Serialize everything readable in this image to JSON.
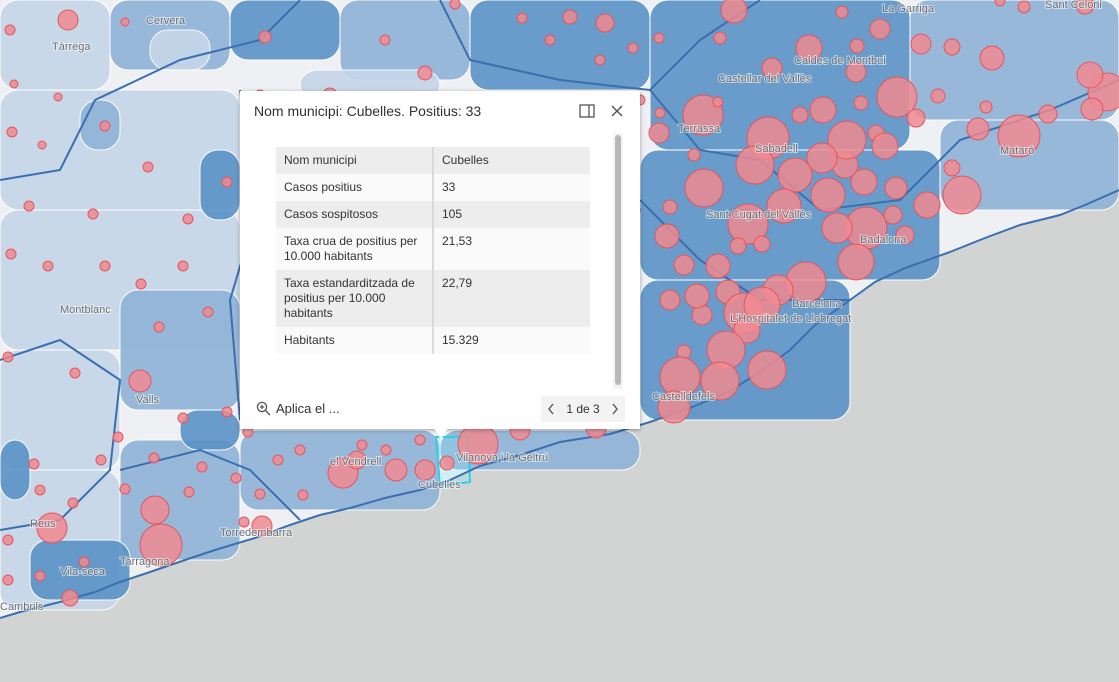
{
  "map": {
    "colors": {
      "sea": "#d2d4d4",
      "land": "#eef0f3",
      "boundary": "#3a6fb0",
      "fill_light": "#c6d6e9",
      "fill_mid": "#8fb3d8",
      "fill_dark": "#5b93c6",
      "bubble": "#f08a90",
      "bubble_stroke": "#e0565f",
      "selected_outline": "#2fd0e6"
    },
    "labels": {
      "tarrega": "Tàrrega",
      "cervera": "Cervera",
      "caldes": "Caldes de Montbui",
      "castellar": "Castellar del Vallès",
      "terrassa": "Terrassa",
      "sabadell": "Sabadell",
      "mataro": "Mataró",
      "santceloni": "Sant Celoni",
      "lagarriga": "La Garriga",
      "santcugat": "Sant Cugat del Vallès",
      "badalona": "Badalona",
      "montblanc": "Montblanc",
      "barcelona": "Barcelona",
      "hospitalet": "L'Hospitalet de Llobregat",
      "valls": "Valls",
      "castelldefels": "Castelldefels",
      "vendrell": "el Vendrell",
      "vilanova": "Vilanova i la Geltrú",
      "cubelles": "Cubelles",
      "reus": "Reus",
      "tarragona": "Tarragona",
      "torredembarra": "Torredembarra",
      "vilaseca": "Vila-seca",
      "cambrils": "Cambrils"
    }
  },
  "popup": {
    "title": "Nom municipi: Cubelles. Positius: 33",
    "dock_icon": "dock-icon",
    "close_icon": "close-icon",
    "rows": [
      {
        "field": "Nom municipi",
        "value": "Cubelles"
      },
      {
        "field": "Casos positius",
        "value": "33"
      },
      {
        "field": "Casos sospitosos",
        "value": "105"
      },
      {
        "field": "Taxa crua de positius per 10.000 habitants",
        "value": "21,53"
      },
      {
        "field": "Taxa estandarditzada de positius per 10.000 habitants",
        "value": "22,79"
      },
      {
        "field": "Habitants",
        "value": "15.329"
      }
    ],
    "zoom_action": "Aplica el ...",
    "pager": "1 de 3"
  }
}
